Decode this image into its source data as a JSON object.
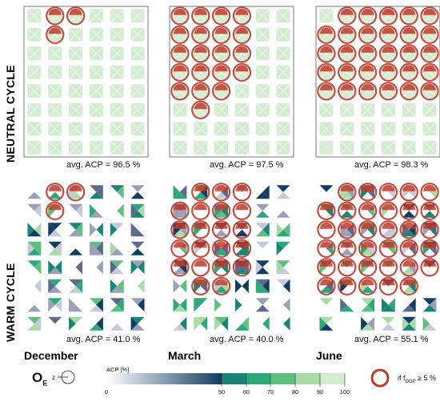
{
  "rows": [
    {
      "label": "NEUTRAL CYCLE",
      "key": "neutral"
    },
    {
      "label": "WARM CYCLE",
      "key": "warm"
    }
  ],
  "columns": [
    {
      "label": "December"
    },
    {
      "label": "March"
    },
    {
      "label": "June"
    }
  ],
  "averages": {
    "neutral": [
      "avg. ACP = 96.5 %",
      "avg. ACP = 97.5 %",
      "avg. ACP = 98.3 %"
    ],
    "warm": [
      "avg. ACP = 41.0 %",
      "avg. ACP = 40.0 %",
      "avg. ACP = 55.1 %"
    ]
  },
  "legend": {
    "orientation_symbol": "O",
    "orientation_sub": "E",
    "orientation_marker": "z",
    "colorbar_title": "ACP [%]",
    "ticks": [
      "0",
      "50",
      "60",
      "70",
      "80",
      "90",
      "100"
    ],
    "marker_label": "if f",
    "marker_sub": "DGP",
    "marker_rest": " ≥ 5 %",
    "marker_color": "#c0392b"
  },
  "chart_data": {
    "type": "heatmap",
    "grid": {
      "rows": 8,
      "cols": 6
    },
    "value_scale": [
      0,
      100
    ],
    "colors": {
      "100": "#d4ecd1",
      "90": "#a8dba8",
      "80": "#5fbf7f",
      "70": "#2ea87a",
      "60": "#1b8474",
      "50": "#123d62",
      "0": "#ffffff"
    },
    "panels": [
      {
        "row": "neutral",
        "column": "December",
        "avg_acp": 96.5,
        "glare_cells": [
          [
            0,
            1
          ],
          [
            0,
            2
          ],
          [
            1,
            1
          ]
        ]
      },
      {
        "row": "neutral",
        "column": "March",
        "avg_acp": 97.5,
        "glare_cells": [
          [
            0,
            0
          ],
          [
            0,
            1
          ],
          [
            0,
            2
          ],
          [
            0,
            3
          ],
          [
            1,
            0
          ],
          [
            1,
            1
          ],
          [
            1,
            2
          ],
          [
            1,
            3
          ],
          [
            2,
            0
          ],
          [
            2,
            1
          ],
          [
            2,
            2
          ],
          [
            2,
            3
          ],
          [
            3,
            0
          ],
          [
            3,
            1
          ],
          [
            3,
            2
          ],
          [
            3,
            3
          ],
          [
            4,
            0
          ],
          [
            4,
            1
          ],
          [
            4,
            2
          ],
          [
            5,
            1
          ]
        ]
      },
      {
        "row": "neutral",
        "column": "June",
        "avg_acp": 98.3,
        "glare_cells": [
          [
            0,
            1
          ],
          [
            0,
            2
          ],
          [
            0,
            3
          ],
          [
            0,
            4
          ],
          [
            0,
            5
          ],
          [
            1,
            0
          ],
          [
            1,
            1
          ],
          [
            1,
            2
          ],
          [
            1,
            3
          ],
          [
            1,
            4
          ],
          [
            1,
            5
          ],
          [
            2,
            0
          ],
          [
            2,
            1
          ],
          [
            2,
            2
          ],
          [
            2,
            3
          ],
          [
            2,
            4
          ],
          [
            2,
            5
          ],
          [
            3,
            0
          ],
          [
            3,
            1
          ],
          [
            3,
            2
          ],
          [
            3,
            3
          ],
          [
            3,
            4
          ],
          [
            3,
            5
          ],
          [
            4,
            0
          ],
          [
            4,
            1
          ],
          [
            4,
            2
          ],
          [
            4,
            3
          ],
          [
            4,
            4
          ],
          [
            4,
            5
          ]
        ]
      },
      {
        "row": "warm",
        "column": "December",
        "avg_acp": 41.0,
        "glare_cells": [
          [
            0,
            1
          ],
          [
            0,
            2
          ],
          [
            1,
            1
          ]
        ]
      },
      {
        "row": "warm",
        "column": "March",
        "avg_acp": 40.0,
        "glare_cells": [
          [
            0,
            1
          ],
          [
            0,
            2
          ],
          [
            0,
            3
          ],
          [
            1,
            0
          ],
          [
            1,
            1
          ],
          [
            1,
            2
          ],
          [
            1,
            3
          ],
          [
            2,
            0
          ],
          [
            2,
            1
          ],
          [
            2,
            2
          ],
          [
            2,
            3
          ],
          [
            3,
            0
          ],
          [
            3,
            1
          ],
          [
            3,
            2
          ],
          [
            3,
            3
          ],
          [
            4,
            0
          ],
          [
            4,
            1
          ],
          [
            4,
            2
          ],
          [
            4,
            3
          ],
          [
            5,
            1
          ],
          [
            5,
            2
          ]
        ]
      },
      {
        "row": "warm",
        "column": "June",
        "avg_acp": 55.1,
        "glare_cells": [
          [
            0,
            1
          ],
          [
            0,
            2
          ],
          [
            0,
            3
          ],
          [
            0,
            4
          ],
          [
            0,
            5
          ],
          [
            1,
            0
          ],
          [
            1,
            1
          ],
          [
            1,
            2
          ],
          [
            1,
            3
          ],
          [
            1,
            4
          ],
          [
            1,
            5
          ],
          [
            2,
            0
          ],
          [
            2,
            1
          ],
          [
            2,
            2
          ],
          [
            2,
            3
          ],
          [
            2,
            4
          ],
          [
            2,
            5
          ],
          [
            3,
            0
          ],
          [
            3,
            1
          ],
          [
            3,
            2
          ],
          [
            3,
            3
          ],
          [
            3,
            4
          ],
          [
            3,
            5
          ],
          [
            4,
            0
          ],
          [
            4,
            1
          ],
          [
            4,
            2
          ],
          [
            4,
            3
          ],
          [
            4,
            4
          ],
          [
            4,
            5
          ],
          [
            5,
            0
          ],
          [
            5,
            1
          ],
          [
            5,
            2
          ],
          [
            5,
            3
          ],
          [
            5,
            4
          ]
        ]
      }
    ]
  }
}
